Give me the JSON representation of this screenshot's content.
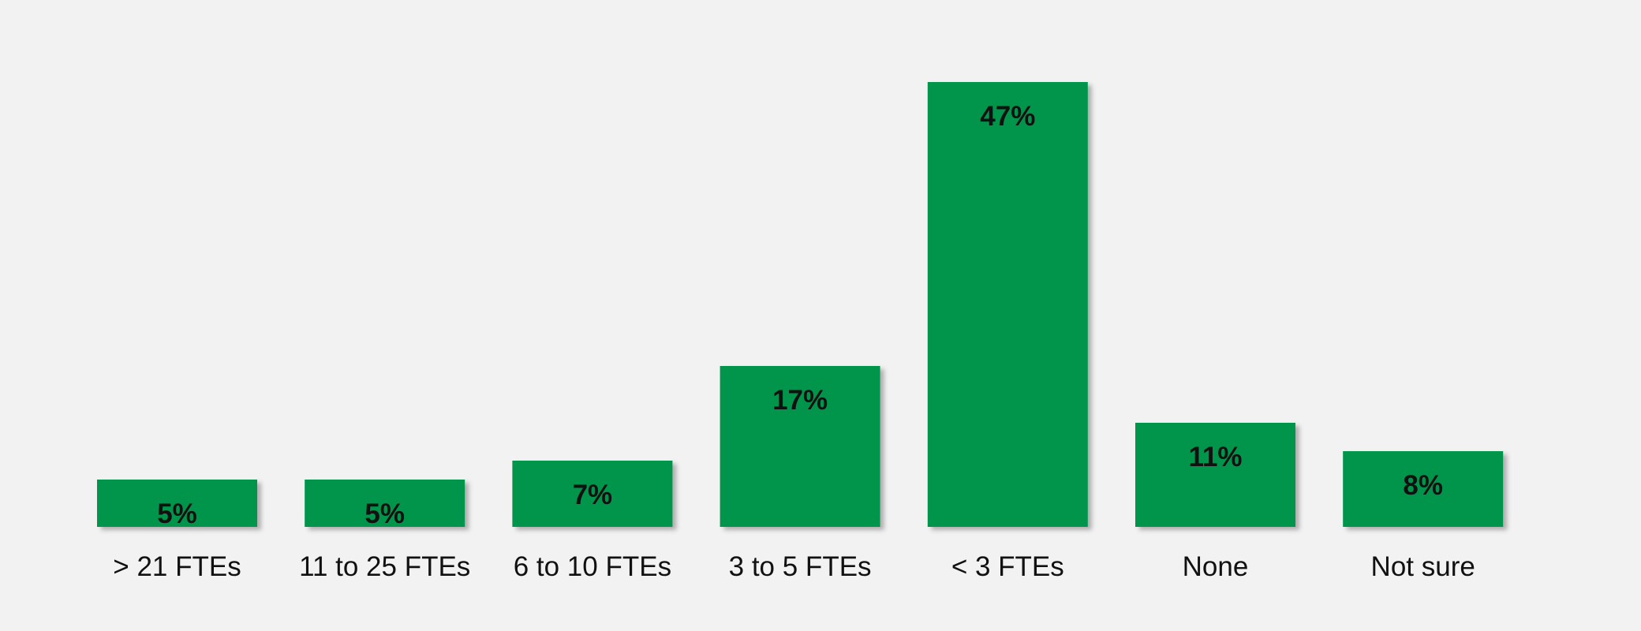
{
  "chart_data": {
    "type": "bar",
    "title": "",
    "xlabel": "",
    "ylabel": "",
    "categories": [
      "> 21 FTEs",
      "11 to 25 FTEs",
      "6 to 10 FTEs",
      "3 to 5 FTEs",
      "< 3 FTEs",
      "None",
      "Not sure"
    ],
    "values": [
      5,
      5,
      7,
      17,
      47,
      11,
      8
    ],
    "value_labels": [
      "5%",
      "5%",
      "7%",
      "17%",
      "47%",
      "11%",
      "8%"
    ],
    "ylim": [
      0,
      50
    ],
    "grid": false,
    "legend": "none",
    "bar_color": "#00954c",
    "background_color": "#f2f2f2"
  }
}
